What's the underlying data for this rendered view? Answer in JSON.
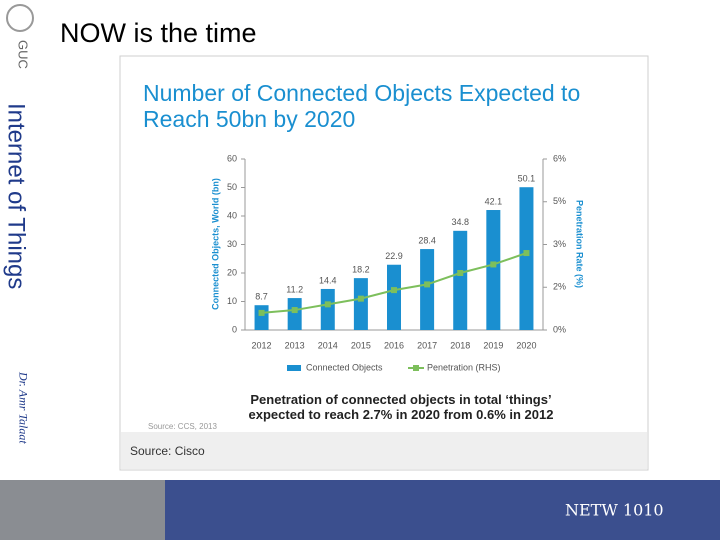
{
  "slide": {
    "title": "NOW is the time",
    "side_title": "Internet of Things",
    "author": "Dr. Amr Talaat",
    "logo": "GUC",
    "course": "NETW 1010",
    "source": "Source: Cisco"
  },
  "chart_data": {
    "type": "bar",
    "title": "Number of Connected Objects Expected to Reach 50bn by 2020",
    "categories": [
      "2012",
      "2013",
      "2014",
      "2015",
      "2016",
      "2017",
      "2018",
      "2019",
      "2020"
    ],
    "series": [
      {
        "name": "Connected Objects",
        "color": "#1a8fd0",
        "values": [
          8.7,
          11.2,
          14.4,
          18.2,
          22.9,
          28.4,
          34.8,
          42.1,
          50.1
        ]
      },
      {
        "name": "Penetration (RHS)",
        "color": "#7dbf5c",
        "axis": "y2",
        "type": "line",
        "values": [
          0.6,
          0.7,
          0.9,
          1.1,
          1.4,
          1.6,
          2.0,
          2.3,
          2.7
        ]
      }
    ],
    "ylabel": "Connected Objects, World (bn)",
    "y2label": "Penetration Rate (%)",
    "ylim": [
      0,
      60
    ],
    "yticks": [
      0,
      10,
      20,
      30,
      40,
      50,
      60
    ],
    "y2lim": [
      0,
      6
    ],
    "y2ticks": [
      {
        "value": 0,
        "label": "0%"
      },
      {
        "value": 1.5,
        "label": "2%"
      },
      {
        "value": 3,
        "label": "3%"
      },
      {
        "value": 4.5,
        "label": "5%"
      },
      {
        "value": 6,
        "label": "6%"
      }
    ],
    "caption": "Penetration of connected objects in total ‘things’ expected to reach 2.7% in 2020 from 0.6% in 2012",
    "source_note": "Source: CCS, 2013"
  }
}
